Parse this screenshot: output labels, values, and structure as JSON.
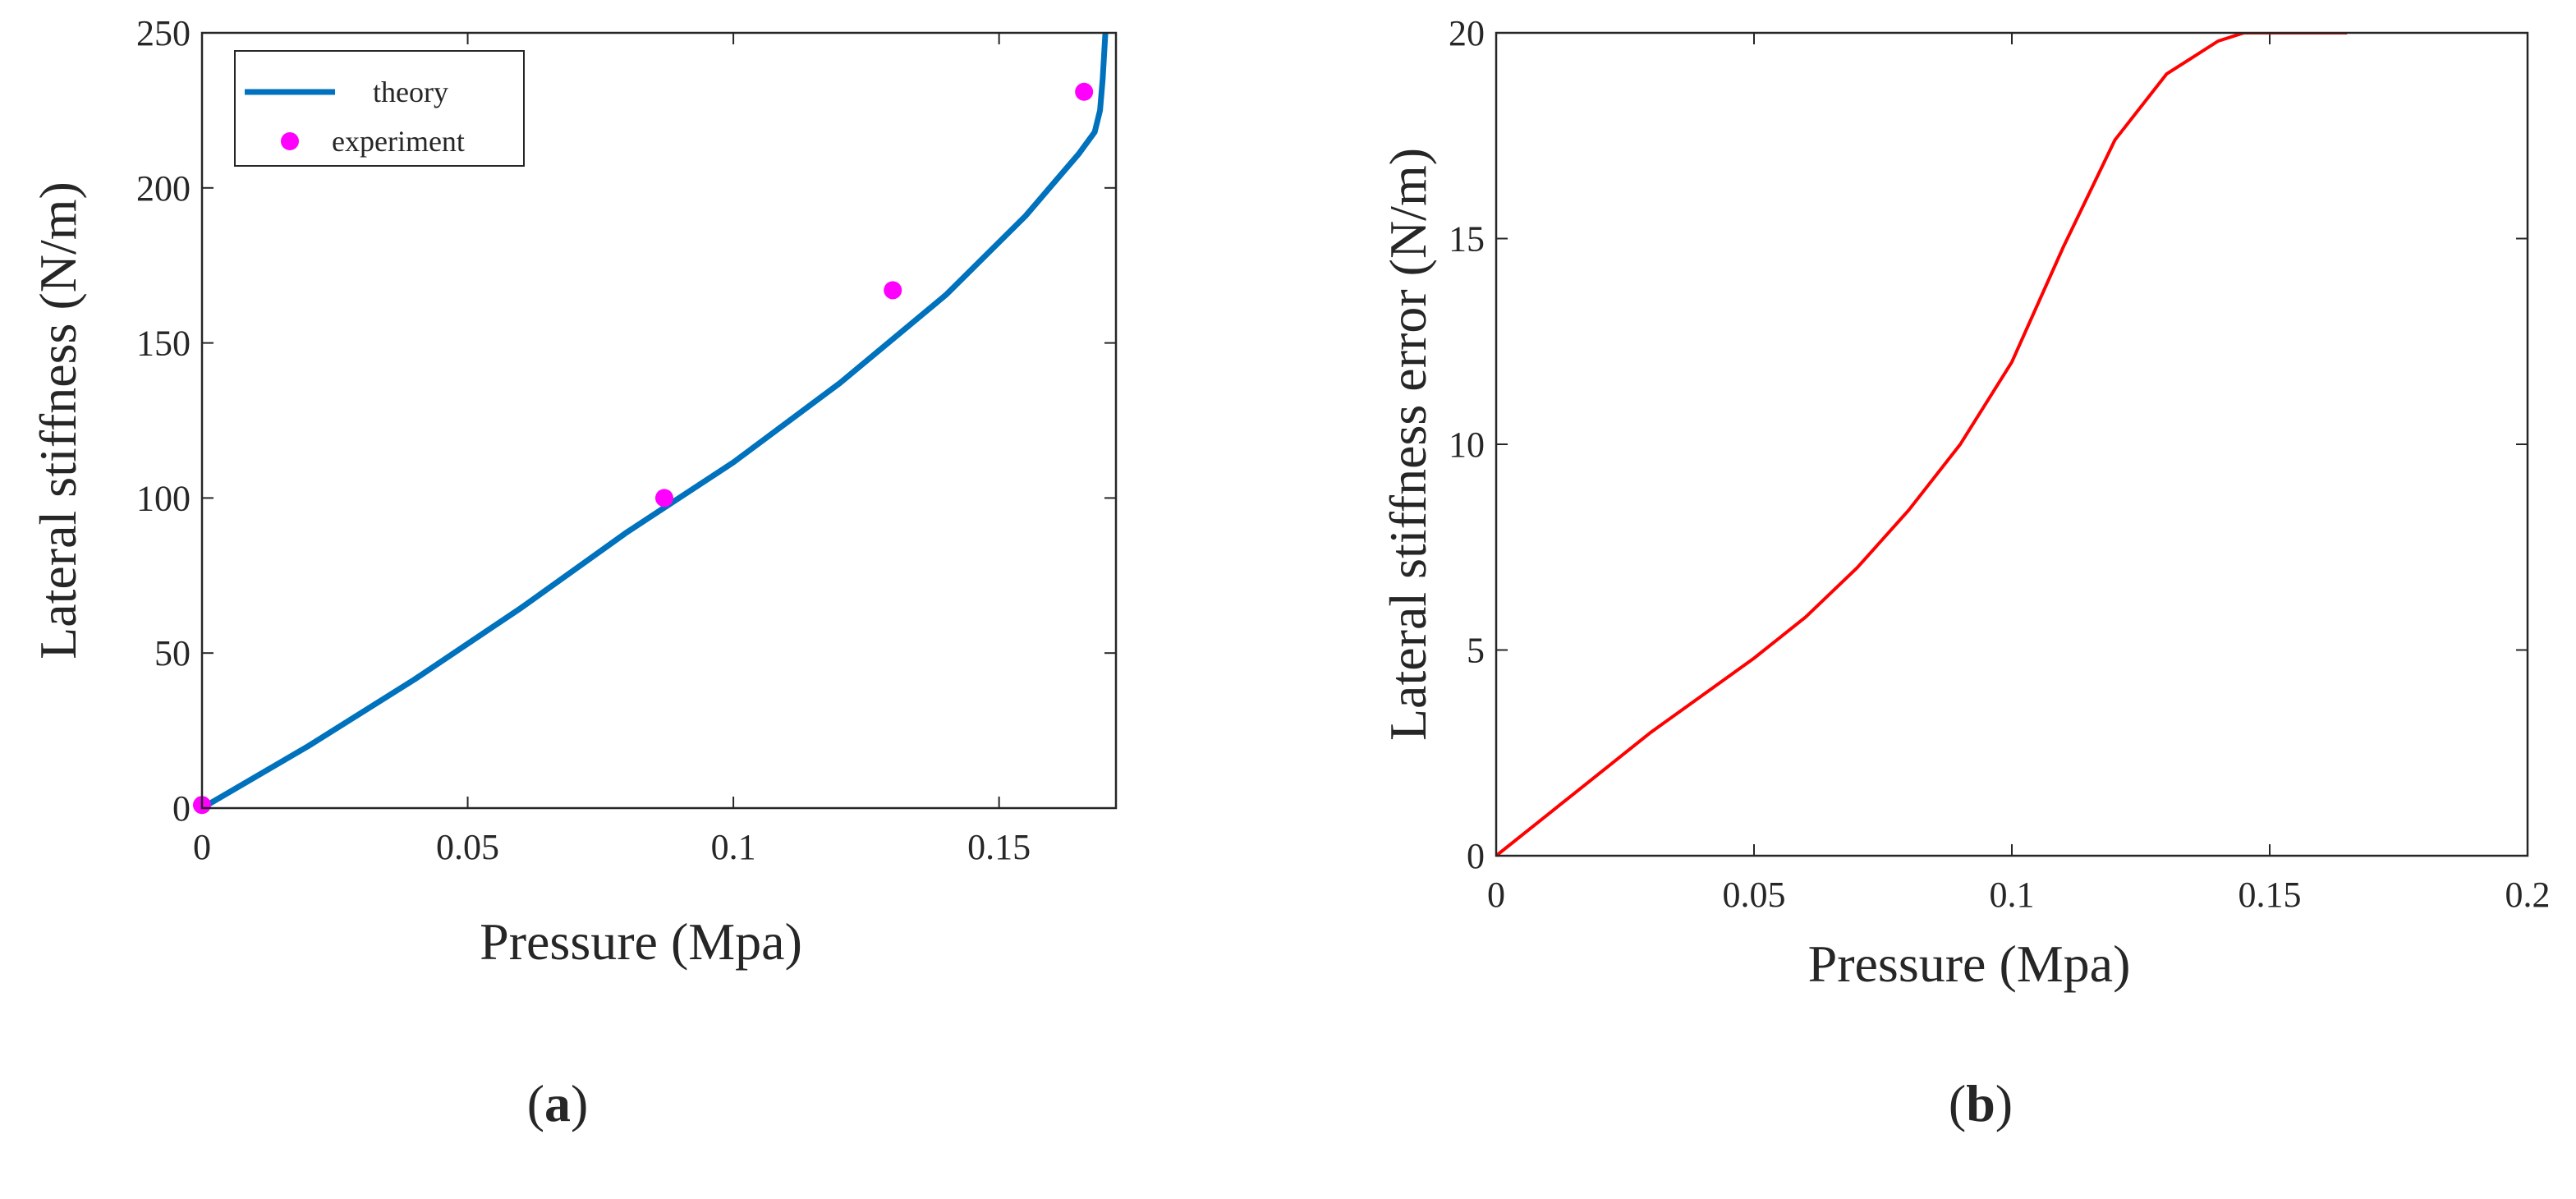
{
  "chart_data": [
    {
      "type": "line",
      "panel_label": {
        "open": "(",
        "letter": "a",
        "close": ")"
      },
      "title": "",
      "xlabel": "Pressure (Mpa)",
      "ylabel": "Lateral stiffness (N/m)",
      "xlim": [
        0,
        0.172
      ],
      "ylim": [
        0,
        250
      ],
      "xticks": [
        0,
        0.05,
        0.1,
        0.15
      ],
      "xtick_labels": [
        "0",
        "0.05",
        "0.1",
        "0.15"
      ],
      "yticks": [
        0,
        50,
        100,
        150,
        200,
        250
      ],
      "ytick_labels": [
        "0",
        "50",
        "100",
        "150",
        "200",
        "250"
      ],
      "grid": false,
      "legend_position": "top-left",
      "series": [
        {
          "name": "theory",
          "kind": "line",
          "color": "#0072BD",
          "x": [
            0,
            0.02,
            0.04,
            0.06,
            0.08,
            0.1,
            0.12,
            0.14,
            0.155,
            0.165,
            0.168,
            0.169,
            0.1695,
            0.17
          ],
          "y": [
            0,
            20,
            41.5,
            64.5,
            89,
            111.5,
            137,
            165.5,
            191,
            211,
            218,
            225,
            235,
            250
          ]
        },
        {
          "name": "experiment",
          "kind": "scatter",
          "color": "#FF00FF",
          "x": [
            0,
            0.087,
            0.13,
            0.166
          ],
          "y": [
            1,
            100,
            167,
            231
          ]
        }
      ]
    },
    {
      "type": "line",
      "panel_label": {
        "open": "(",
        "letter": "b",
        "close": ")"
      },
      "title": "",
      "xlabel": "Pressure (Mpa)",
      "ylabel": "Lateral stiffness error (N/m)",
      "xlim": [
        0,
        0.2
      ],
      "ylim": [
        0,
        20
      ],
      "xticks": [
        0,
        0.05,
        0.1,
        0.15,
        0.2
      ],
      "xtick_labels": [
        "0",
        "0.05",
        "0.1",
        "0.15",
        "0.2"
      ],
      "yticks": [
        0,
        5,
        10,
        15,
        20
      ],
      "ytick_labels": [
        "0",
        "5",
        "10",
        "15",
        "20"
      ],
      "grid": false,
      "series": [
        {
          "kind": "line",
          "color": "#FF0000",
          "x": [
            0,
            0.01,
            0.02,
            0.03,
            0.04,
            0.05,
            0.06,
            0.07,
            0.08,
            0.09,
            0.1,
            0.11,
            0.12,
            0.13,
            0.14,
            0.145,
            0.15,
            0.155,
            0.16,
            0.165
          ],
          "y": [
            0,
            1.0,
            2.0,
            3.0,
            3.9,
            4.8,
            5.8,
            7.0,
            8.4,
            10.0,
            12.0,
            14.8,
            17.4,
            19.0,
            19.8,
            20,
            20,
            20,
            20,
            20
          ]
        }
      ]
    }
  ]
}
